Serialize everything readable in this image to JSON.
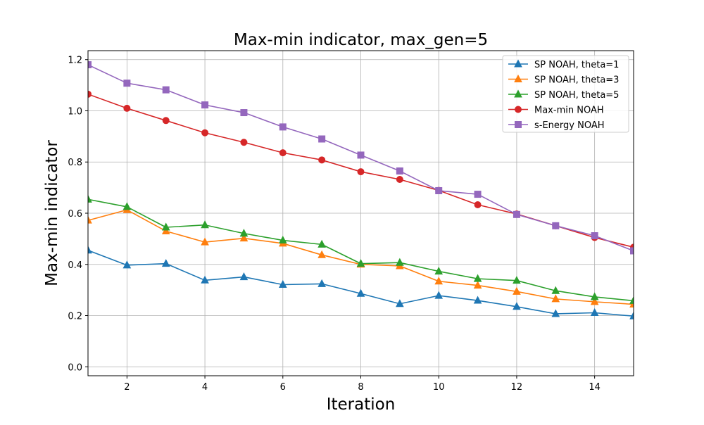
{
  "chart_data": {
    "type": "line",
    "title": "Max-min indicator, max_gen=5",
    "xlabel": "Iteration",
    "ylabel": "Max-min indicator",
    "xlim": [
      1,
      15
    ],
    "ylim": [
      -0.035,
      1.235
    ],
    "grid": true,
    "legend_position": "top-right",
    "x": [
      1,
      2,
      3,
      4,
      5,
      6,
      7,
      8,
      9,
      10,
      11,
      12,
      13,
      14,
      15
    ],
    "x_ticks": [
      "2",
      "4",
      "6",
      "8",
      "10",
      "12",
      "14"
    ],
    "y_ticks": [
      "0.0",
      "0.2",
      "0.4",
      "0.6",
      "0.8",
      "1.0",
      "1.2"
    ],
    "series": [
      {
        "name": "SP NOAH, theta=1",
        "color": "#1f77b4",
        "marker": "triangle-up",
        "values": [
          0.455,
          0.397,
          0.403,
          0.338,
          0.351,
          0.321,
          0.324,
          0.286,
          0.246,
          0.278,
          0.259,
          0.235,
          0.207,
          0.211,
          0.198
        ]
      },
      {
        "name": "SP NOAH, theta=3",
        "color": "#ff7f0e",
        "marker": "triangle-up",
        "values": [
          0.572,
          0.613,
          0.53,
          0.487,
          0.502,
          0.482,
          0.437,
          0.4,
          0.394,
          0.334,
          0.318,
          0.294,
          0.265,
          0.254,
          0.244
        ]
      },
      {
        "name": "SP NOAH, theta=5",
        "color": "#2ca02c",
        "marker": "triangle-up",
        "values": [
          0.654,
          0.625,
          0.545,
          0.554,
          0.521,
          0.494,
          0.478,
          0.403,
          0.407,
          0.373,
          0.344,
          0.337,
          0.297,
          0.273,
          0.258
        ]
      },
      {
        "name": "Max-min NOAH",
        "color": "#d62728",
        "marker": "circle",
        "values": [
          1.065,
          1.01,
          0.962,
          0.914,
          0.877,
          0.836,
          0.808,
          0.762,
          0.732,
          0.689,
          0.633,
          0.597,
          0.551,
          0.505,
          0.467
        ]
      },
      {
        "name": "s-Energy NOAH",
        "color": "#9467bd",
        "marker": "square",
        "values": [
          1.18,
          1.108,
          1.082,
          1.023,
          0.993,
          0.937,
          0.89,
          0.827,
          0.765,
          0.688,
          0.674,
          0.595,
          0.551,
          0.512,
          0.453
        ]
      }
    ]
  }
}
